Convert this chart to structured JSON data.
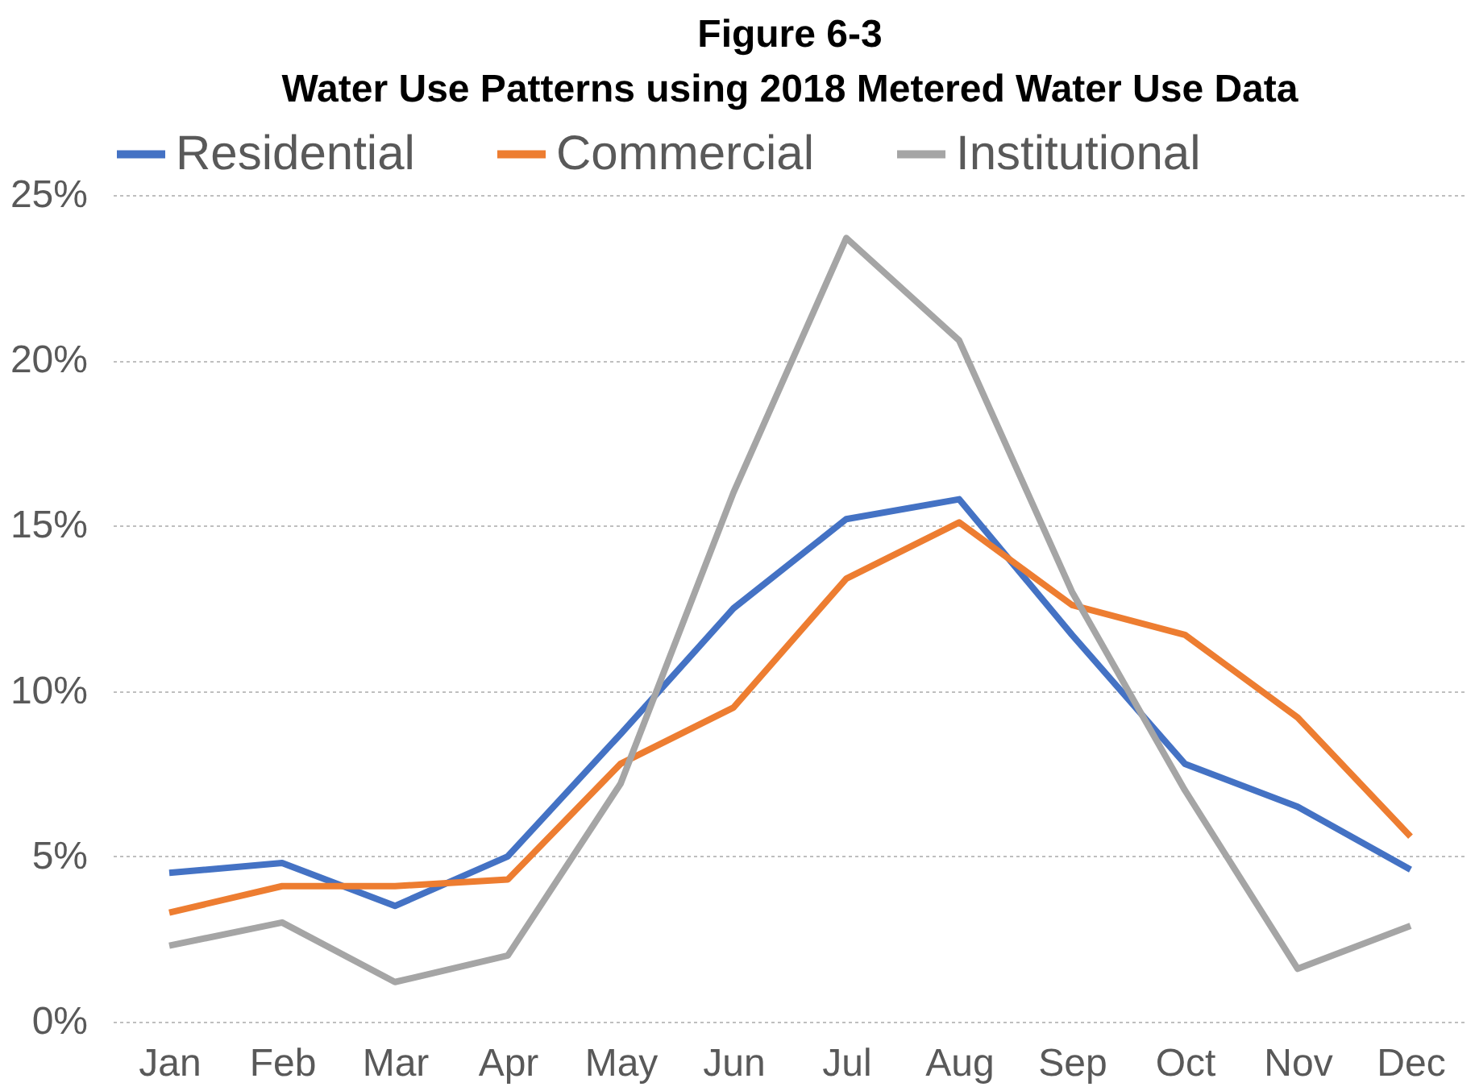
{
  "chart_data": {
    "type": "line",
    "title": "Figure 6-3",
    "subtitle": "Water Use Patterns using 2018 Metered Water Use Data",
    "categories": [
      "Jan",
      "Feb",
      "Mar",
      "Apr",
      "May",
      "Jun",
      "Jul",
      "Aug",
      "Sep",
      "Oct",
      "Nov",
      "Dec"
    ],
    "series": [
      {
        "name": "Residential",
        "color": "#4472c4",
        "values": [
          4.5,
          4.8,
          3.5,
          5.0,
          8.7,
          12.5,
          15.2,
          15.8,
          11.7,
          7.8,
          6.5,
          4.6
        ]
      },
      {
        "name": "Commercial",
        "color": "#ed7d31",
        "values": [
          3.3,
          4.1,
          4.1,
          4.3,
          7.8,
          9.5,
          13.4,
          15.1,
          12.6,
          11.7,
          9.2,
          5.6
        ]
      },
      {
        "name": "Institutional",
        "color": "#a5a5a5",
        "values": [
          2.3,
          3.0,
          1.2,
          2.0,
          7.2,
          16.0,
          23.7,
          20.6,
          13.0,
          7.0,
          1.6,
          2.9
        ]
      }
    ],
    "ylim": [
      0,
      25
    ],
    "yticks": [
      {
        "value": 0,
        "label": "0%"
      },
      {
        "value": 5,
        "label": "5%"
      },
      {
        "value": 10,
        "label": "10%"
      },
      {
        "value": 15,
        "label": "15%"
      },
      {
        "value": 20,
        "label": "20%"
      },
      {
        "value": 25,
        "label": "25%"
      }
    ],
    "grid": "y",
    "legend": "top",
    "marker": "none",
    "line_style": "solid"
  }
}
